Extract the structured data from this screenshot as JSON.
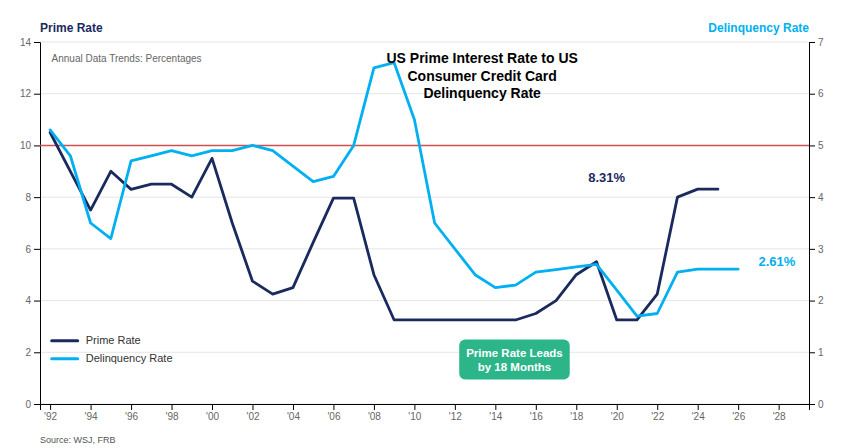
{
  "chart_data": {
    "type": "line",
    "title": "US Prime Interest Rate to US\nConsumer Credit Card\nDelinquency Rate",
    "subtitle": "Annual Data Trends: Percentages",
    "ylabel": "Prime Rate",
    "y2label": "Delinquency Rate",
    "source": "Source:  WSJ, FRB",
    "x": [
      1992,
      1993,
      1994,
      1995,
      1996,
      1997,
      1998,
      1999,
      2000,
      2001,
      2002,
      2003,
      2004,
      2005,
      2006,
      2007,
      2008,
      2009,
      2010,
      2011,
      2012,
      2013,
      2014,
      2015,
      2016,
      2017,
      2018,
      2019,
      2020,
      2021,
      2022,
      2023,
      2024,
      2025,
      2026
    ],
    "series": [
      {
        "name": "Prime Rate",
        "color": "#1a2a5e",
        "values": [
          10.5,
          9.0,
          7.5,
          9.0,
          8.3,
          8.5,
          8.5,
          8.0,
          9.5,
          7.0,
          4.75,
          4.25,
          4.5,
          6.25,
          7.96,
          7.96,
          5.0,
          3.25,
          3.25,
          3.25,
          3.25,
          3.25,
          3.25,
          3.25,
          3.5,
          4.0,
          5.0,
          5.5,
          3.25,
          3.25,
          4.25,
          8.0,
          8.31,
          8.31,
          null
        ]
      },
      {
        "name": "Delinquency Rate",
        "color": "#00b0f0",
        "axis": "y2",
        "values": [
          5.3,
          4.8,
          3.5,
          3.2,
          4.7,
          4.8,
          4.9,
          4.8,
          4.9,
          4.9,
          5.0,
          4.9,
          4.6,
          4.3,
          4.4,
          5.0,
          6.5,
          6.6,
          5.5,
          3.5,
          3.0,
          2.5,
          2.25,
          2.3,
          2.55,
          2.6,
          2.65,
          2.7,
          2.2,
          1.7,
          1.75,
          2.55,
          2.61,
          2.61,
          2.61
        ]
      }
    ],
    "hline": {
      "value": 10.0,
      "color": "#d05050"
    },
    "annotations": [
      {
        "text": "8.31%",
        "x": 2019.5,
        "y": 8.6,
        "color": "#1a2a5e"
      },
      {
        "text": "2.61%",
        "x": 2027.0,
        "y": 5.35,
        "color": "#00b0f0"
      }
    ],
    "callout": {
      "text": "Prime Rate Leads\nby 18 Months",
      "color": "#2db58a"
    },
    "xlim": [
      1991.5,
      2029.5
    ],
    "xticks": [
      {
        "value": 1992,
        "label": "'92"
      },
      {
        "value": 1994,
        "label": "'94"
      },
      {
        "value": 1996,
        "label": "'96"
      },
      {
        "value": 1998,
        "label": "'98"
      },
      {
        "value": 2000,
        "label": "'00"
      },
      {
        "value": 2002,
        "label": "'02"
      },
      {
        "value": 2004,
        "label": "'04"
      },
      {
        "value": 2006,
        "label": "'06"
      },
      {
        "value": 2008,
        "label": "'08"
      },
      {
        "value": 2010,
        "label": "'10"
      },
      {
        "value": 2012,
        "label": "'12"
      },
      {
        "value": 2014,
        "label": "'14"
      },
      {
        "value": 2016,
        "label": "'16"
      },
      {
        "value": 2018,
        "label": "'18"
      },
      {
        "value": 2020,
        "label": "'20"
      },
      {
        "value": 2022,
        "label": "'22"
      },
      {
        "value": 2024,
        "label": "'24"
      },
      {
        "value": 2026,
        "label": "'26"
      },
      {
        "value": 2028,
        "label": "'28"
      }
    ],
    "ylim": [
      0,
      14
    ],
    "yticks": [
      0,
      2,
      4,
      6,
      8,
      10,
      12,
      14
    ],
    "y2lim": [
      0,
      7
    ],
    "y2ticks": [
      0,
      1,
      2,
      3,
      4,
      5,
      6,
      7
    ],
    "grid": true,
    "legend": "bottom-left"
  }
}
